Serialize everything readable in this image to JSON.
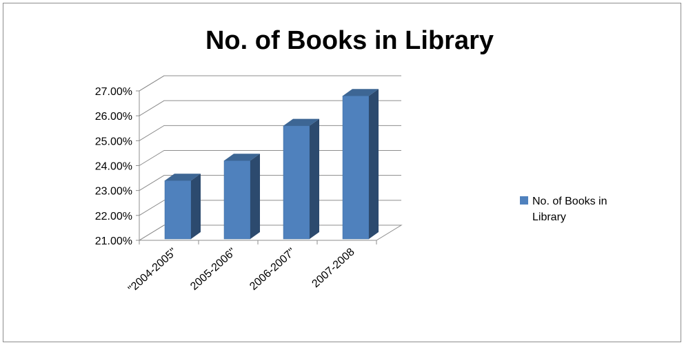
{
  "chart_data": {
    "type": "bar",
    "title": "No. of Books in Library",
    "categories": [
      "\"2004-2005\"",
      "2005-2006\"",
      "2006-2007\"",
      "2007-2008"
    ],
    "series": [
      {
        "name": "No. of Books in Library",
        "values": [
          23.4,
          24.2,
          25.6,
          26.8
        ],
        "color": "#4f81bd"
      }
    ],
    "ylim": [
      21,
      27
    ],
    "yticks": [
      "21.00%",
      "22.00%",
      "23.00%",
      "24.00%",
      "25.00%",
      "26.00%",
      "27.00%"
    ],
    "y_unit": "%",
    "grid": true,
    "legend_position": "right",
    "style": "3d-column"
  }
}
